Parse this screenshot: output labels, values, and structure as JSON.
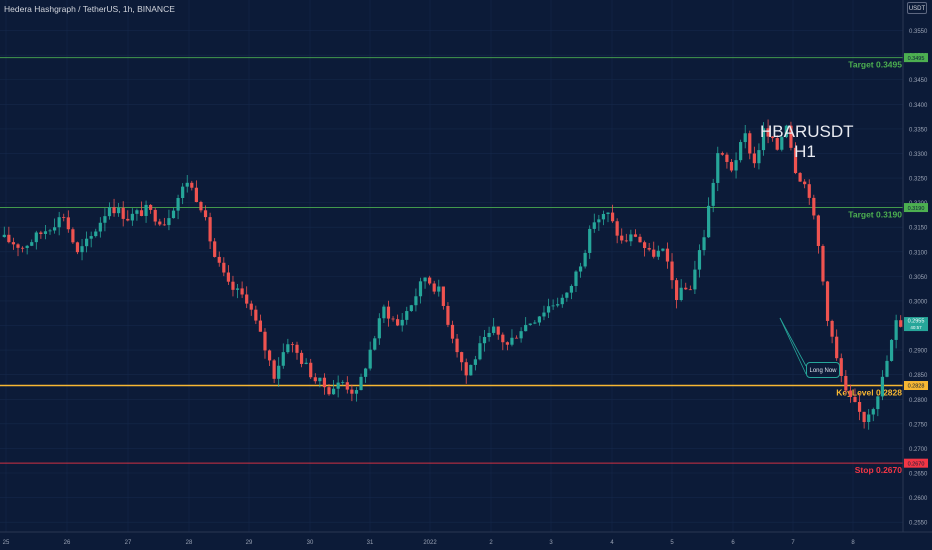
{
  "header": {
    "title": "Hedera Hashgraph / TetherUS, 1h, BINANCE",
    "currency": "USDT"
  },
  "annotations": {
    "symbol": "HBARUSDT",
    "timeframe": "H1",
    "callout": "Long Now"
  },
  "levels": [
    {
      "id": "target2",
      "label": "Target 0.3495",
      "value": 0.3495,
      "badge": "0.3495",
      "color": "#4caf50"
    },
    {
      "id": "target1",
      "label": "Target 0.3190",
      "value": 0.319,
      "badge": "0.3190",
      "color": "#4caf50"
    },
    {
      "id": "key",
      "label": "KeyLevel 0.2828",
      "value": 0.2828,
      "badge": "0.2828",
      "color": "#f7b733"
    },
    {
      "id": "stop",
      "label": "Stop 0.2670",
      "value": 0.267,
      "badge": "0.2670",
      "color": "#f23645"
    }
  ],
  "price_badge": {
    "value": "0.2955",
    "sub": "40:57",
    "color": "#26a69a"
  },
  "chart_data": {
    "type": "candlestick",
    "title": "Hedera Hashgraph / TetherUS, 1h, BINANCE",
    "ylim": [
      0.253,
      0.36
    ],
    "y_ticks": [
      "0.3550",
      "0.3500",
      "0.3450",
      "0.3400",
      "0.3350",
      "0.3300",
      "0.3250",
      "0.3200",
      "0.3150",
      "0.3100",
      "0.3050",
      "0.3000",
      "0.2950",
      "0.2900",
      "0.2850",
      "0.2800",
      "0.2750",
      "0.2700",
      "0.2650",
      "0.2600",
      "0.2550"
    ],
    "x_ticks": [
      "25",
      "26",
      "27",
      "28",
      "29",
      "30",
      "31",
      "2022",
      "2",
      "3",
      "4",
      "5",
      "6",
      "7",
      "8"
    ],
    "price_path": [
      {
        "t": 0,
        "p": 0.313
      },
      {
        "t": 5,
        "p": 0.311
      },
      {
        "t": 10,
        "p": 0.3145
      },
      {
        "t": 14,
        "p": 0.3175
      },
      {
        "t": 17,
        "p": 0.3095
      },
      {
        "t": 20,
        "p": 0.313
      },
      {
        "t": 24,
        "p": 0.3195
      },
      {
        "t": 28,
        "p": 0.317
      },
      {
        "t": 32,
        "p": 0.3185
      },
      {
        "t": 36,
        "p": 0.316
      },
      {
        "t": 41,
        "p": 0.3245
      },
      {
        "t": 44,
        "p": 0.3195
      },
      {
        "t": 47,
        "p": 0.309
      },
      {
        "t": 50,
        "p": 0.303
      },
      {
        "t": 54,
        "p": 0.3005
      },
      {
        "t": 57,
        "p": 0.293
      },
      {
        "t": 60,
        "p": 0.285
      },
      {
        "t": 63,
        "p": 0.292
      },
      {
        "t": 66,
        "p": 0.288
      },
      {
        "t": 69,
        "p": 0.284
      },
      {
        "t": 72,
        "p": 0.282
      },
      {
        "t": 75,
        "p": 0.2835
      },
      {
        "t": 78,
        "p": 0.281
      },
      {
        "t": 81,
        "p": 0.29
      },
      {
        "t": 84,
        "p": 0.2985
      },
      {
        "t": 87,
        "p": 0.295
      },
      {
        "t": 90,
        "p": 0.2995
      },
      {
        "t": 93,
        "p": 0.305
      },
      {
        "t": 96,
        "p": 0.302
      },
      {
        "t": 99,
        "p": 0.293
      },
      {
        "t": 102,
        "p": 0.285
      },
      {
        "t": 105,
        "p": 0.2905
      },
      {
        "t": 108,
        "p": 0.294
      },
      {
        "t": 111,
        "p": 0.291
      },
      {
        "t": 114,
        "p": 0.2945
      },
      {
        "t": 117,
        "p": 0.2965
      },
      {
        "t": 120,
        "p": 0.299
      },
      {
        "t": 124,
        "p": 0.301
      },
      {
        "t": 127,
        "p": 0.308
      },
      {
        "t": 130,
        "p": 0.3165
      },
      {
        "t": 133,
        "p": 0.3175
      },
      {
        "t": 136,
        "p": 0.312
      },
      {
        "t": 139,
        "p": 0.3135
      },
      {
        "t": 142,
        "p": 0.3095
      },
      {
        "t": 145,
        "p": 0.31
      },
      {
        "t": 148,
        "p": 0.301
      },
      {
        "t": 151,
        "p": 0.303
      },
      {
        "t": 154,
        "p": 0.3135
      },
      {
        "t": 157,
        "p": 0.33
      },
      {
        "t": 160,
        "p": 0.327
      },
      {
        "t": 163,
        "p": 0.3335
      },
      {
        "t": 165,
        "p": 0.328
      },
      {
        "t": 167,
        "p": 0.3345
      },
      {
        "t": 170,
        "p": 0.331
      },
      {
        "t": 172,
        "p": 0.3365
      },
      {
        "t": 174,
        "p": 0.327
      },
      {
        "t": 177,
        "p": 0.322
      },
      {
        "t": 179,
        "p": 0.311
      },
      {
        "t": 181,
        "p": 0.297
      },
      {
        "t": 183,
        "p": 0.288
      },
      {
        "t": 185,
        "p": 0.281
      },
      {
        "t": 187,
        "p": 0.2785
      },
      {
        "t": 189,
        "p": 0.276
      },
      {
        "t": 191,
        "p": 0.279
      },
      {
        "t": 193,
        "p": 0.284
      },
      {
        "t": 196,
        "p": 0.2955
      }
    ],
    "candle_count": 197,
    "up_color": "#26a69a",
    "down_color": "#ef5350"
  }
}
